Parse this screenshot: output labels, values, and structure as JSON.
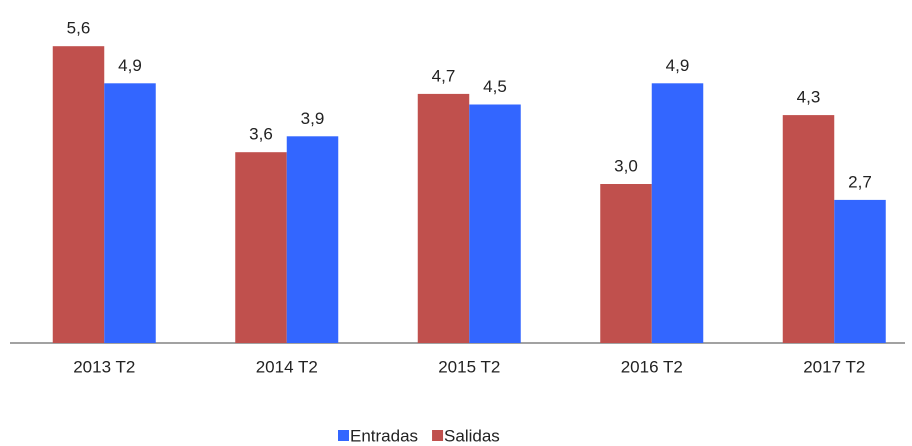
{
  "chart_data": {
    "type": "bar",
    "categories": [
      "2013 T2",
      "2014 T2",
      "2015 T2",
      "2016 T2",
      "2017 T2"
    ],
    "series": [
      {
        "name": "Salidas",
        "color": "#c0504d",
        "values": [
          5.6,
          3.6,
          4.7,
          3.0,
          4.3
        ],
        "value_labels": [
          "5,6",
          "3,6",
          "4,7",
          "3,0",
          "4,3"
        ]
      },
      {
        "name": "Entradas",
        "color": "#3366ff",
        "values": [
          4.9,
          3.9,
          4.5,
          4.9,
          2.7
        ],
        "value_labels": [
          "4,9",
          "3,9",
          "4,5",
          "4,9",
          "2,7"
        ]
      }
    ],
    "legend_order": [
      "Entradas",
      "Salidas"
    ],
    "ylim": [
      0,
      6
    ]
  }
}
